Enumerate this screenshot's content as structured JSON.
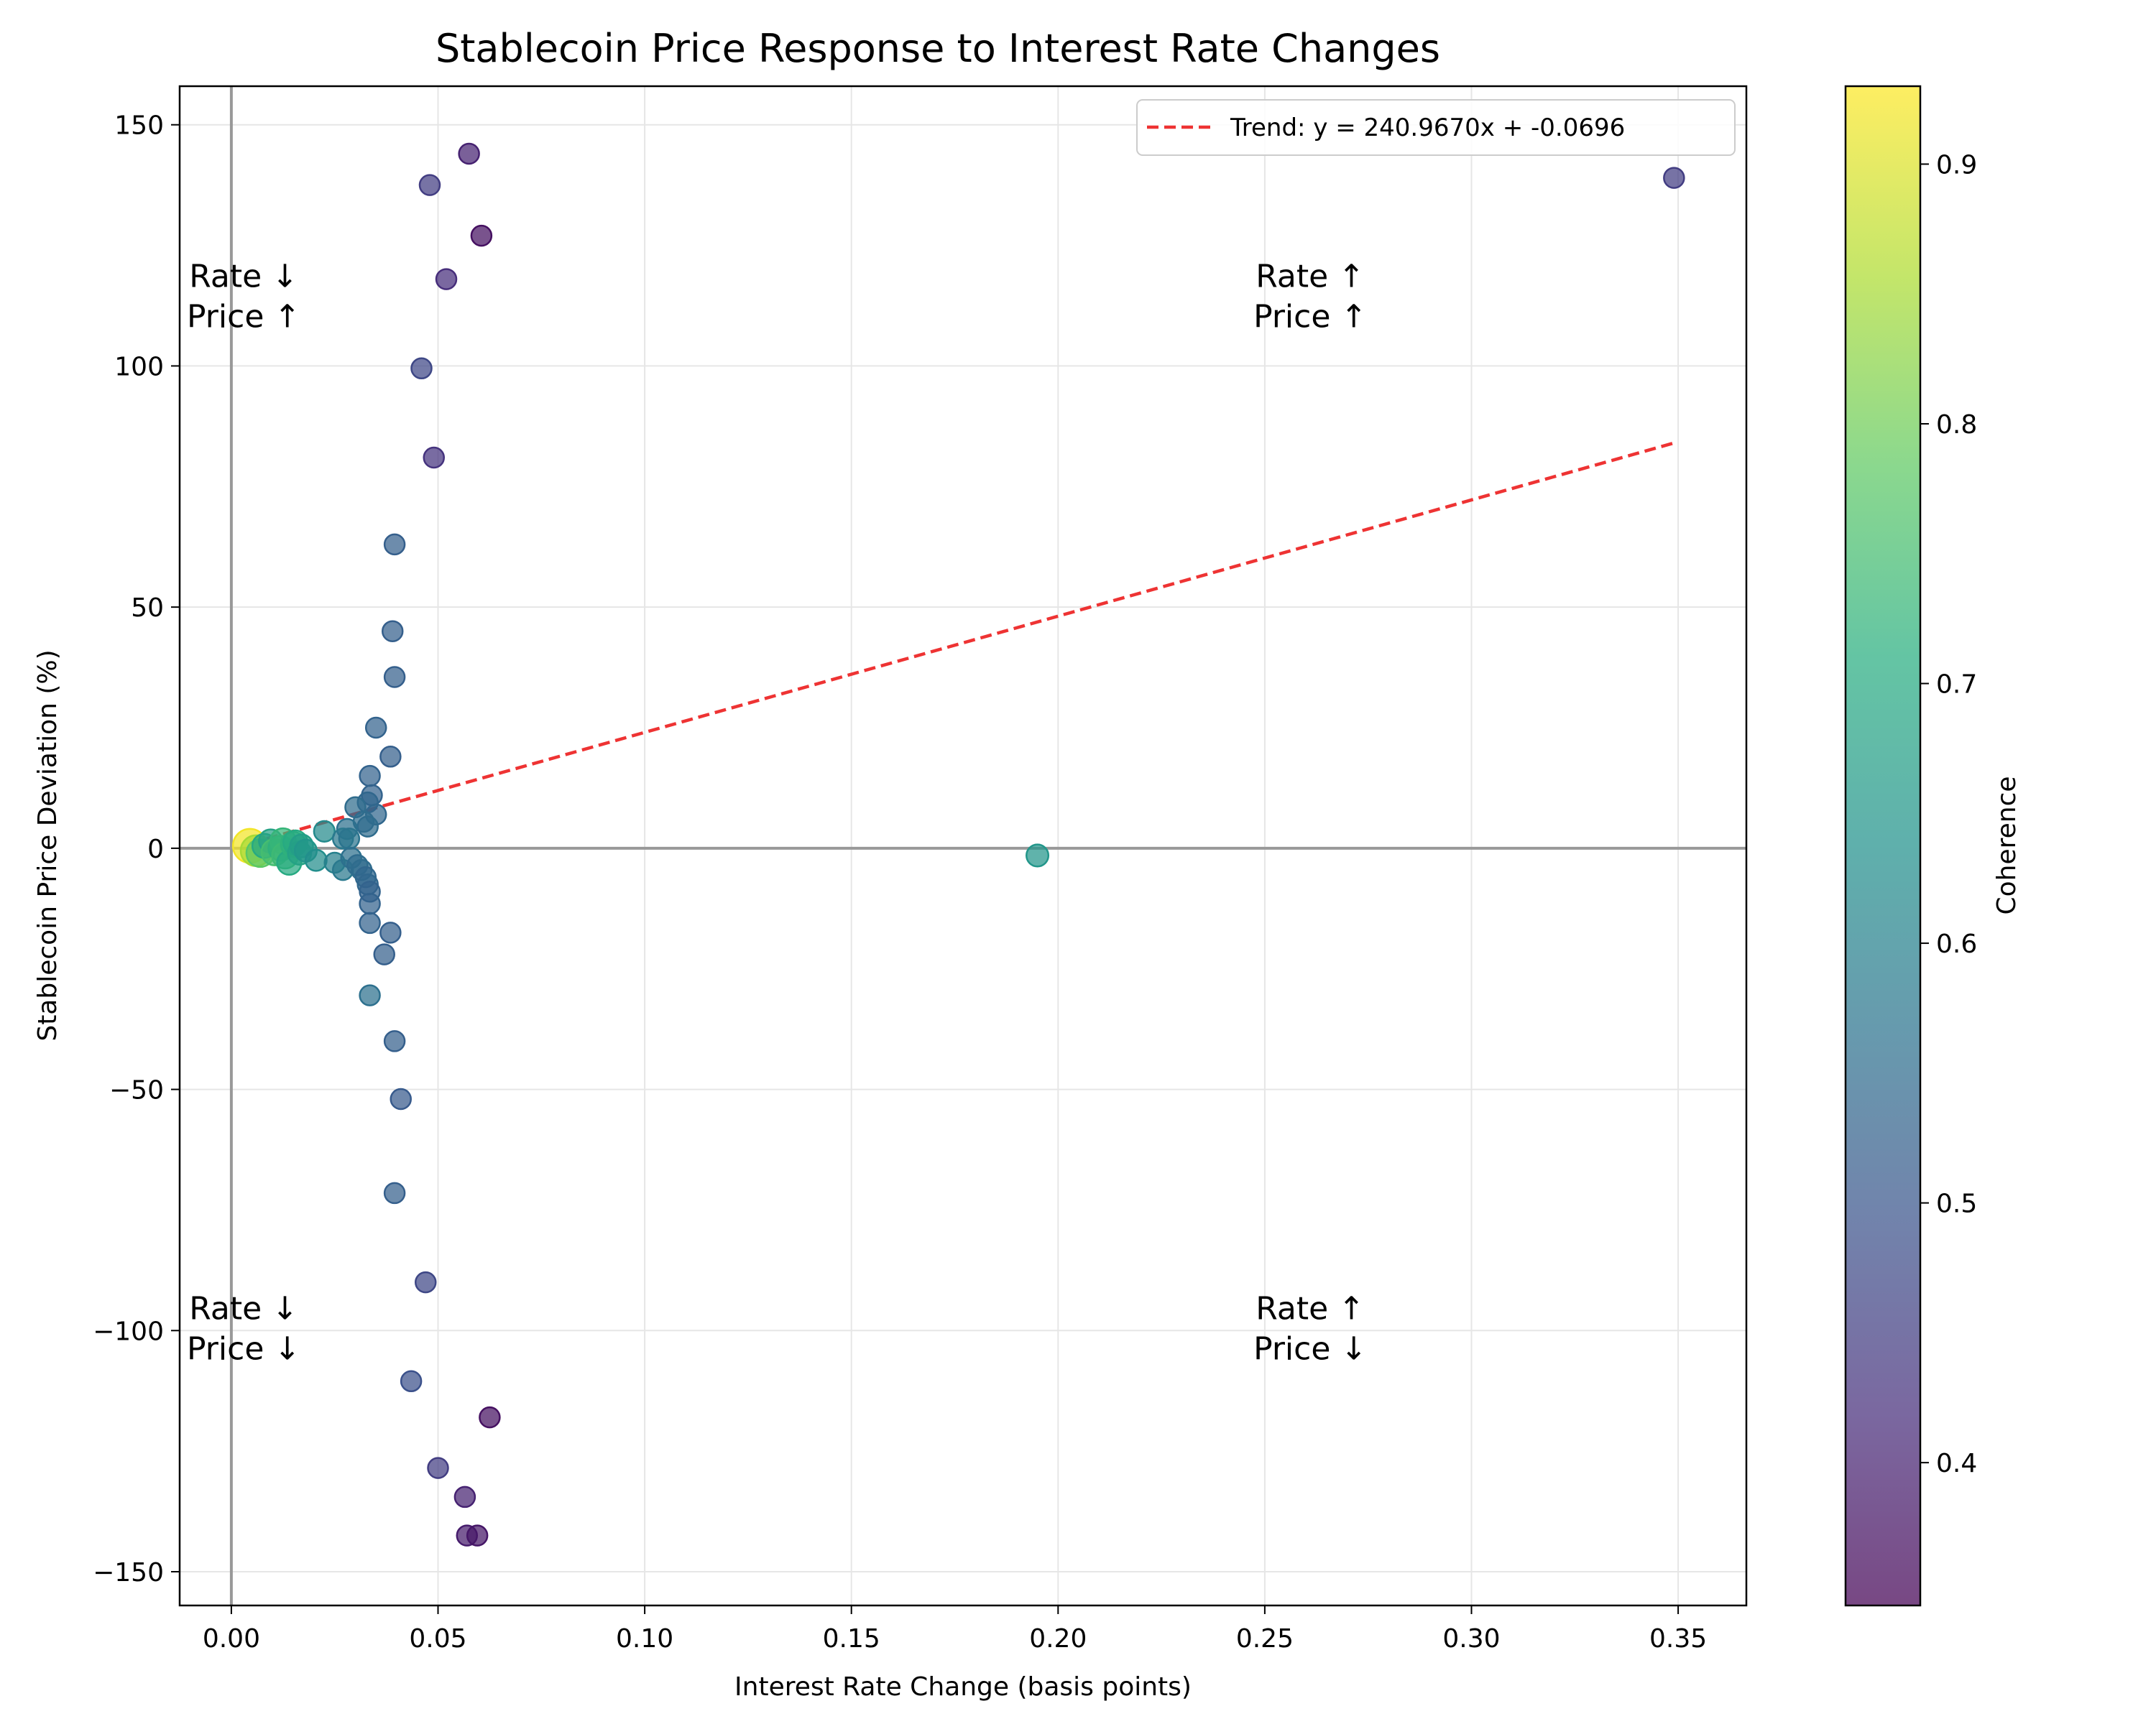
{
  "chart_data": {
    "type": "scatter",
    "title": "Stablecoin Price Response to Interest Rate Changes",
    "xlabel": "Interest Rate Change (basis points)",
    "ylabel": "Stablecoin Price Deviation (%)",
    "xlim": [
      -0.0125,
      0.3665
    ],
    "ylim": [
      -157,
      158
    ],
    "xticks": [
      0.0,
      0.05,
      0.1,
      0.15,
      0.2,
      0.25,
      0.3,
      0.35
    ],
    "xtick_labels": [
      "0.00",
      "0.05",
      "0.10",
      "0.15",
      "0.20",
      "0.25",
      "0.30",
      "0.35"
    ],
    "yticks": [
      -150,
      -100,
      -50,
      0,
      50,
      100,
      150
    ],
    "ytick_labels": [
      "−150",
      "−100",
      "−50",
      "0",
      "50",
      "100",
      "150"
    ],
    "grid": true,
    "reference_lines": {
      "x": 0,
      "y": 0
    },
    "colorbar": {
      "label": "Coherence",
      "colormap": "viridis",
      "range": [
        0.345,
        0.93
      ],
      "ticks": [
        0.4,
        0.5,
        0.6,
        0.7,
        0.8,
        0.9
      ],
      "tick_labels": [
        "0.4",
        "0.5",
        "0.6",
        "0.7",
        "0.8",
        "0.9"
      ]
    },
    "trend": {
      "label": "Trend: y = 240.9670x + -0.0696",
      "slope": 240.967,
      "intercept": -0.0696,
      "x_range": [
        0.0045,
        0.349
      ],
      "color": "#ee3333"
    },
    "legend_position": "top-right",
    "quadrant_labels": [
      {
        "lines": [
          "Rate ↓",
          "Price ↑"
        ],
        "x": 0.003,
        "y": 114
      },
      {
        "lines": [
          "Rate ↑",
          "Price ↑"
        ],
        "x": 0.261,
        "y": 114
      },
      {
        "lines": [
          "Rate ↓",
          "Price ↓"
        ],
        "x": 0.003,
        "y": -100
      },
      {
        "lines": [
          "Rate ↑",
          "Price ↓"
        ],
        "x": 0.261,
        "y": -100
      }
    ],
    "points": [
      {
        "x": 0.349,
        "y": 139,
        "c": 0.45
      },
      {
        "x": 0.0575,
        "y": 144,
        "c": 0.4
      },
      {
        "x": 0.048,
        "y": 137.5,
        "c": 0.45
      },
      {
        "x": 0.0605,
        "y": 127,
        "c": 0.37
      },
      {
        "x": 0.052,
        "y": 118,
        "c": 0.42
      },
      {
        "x": 0.046,
        "y": 99.5,
        "c": 0.47
      },
      {
        "x": 0.049,
        "y": 81,
        "c": 0.43
      },
      {
        "x": 0.0395,
        "y": 63,
        "c": 0.52
      },
      {
        "x": 0.039,
        "y": 45,
        "c": 0.52
      },
      {
        "x": 0.0395,
        "y": 35.5,
        "c": 0.52
      },
      {
        "x": 0.035,
        "y": 25,
        "c": 0.53
      },
      {
        "x": 0.0385,
        "y": 19,
        "c": 0.52
      },
      {
        "x": 0.0335,
        "y": 15,
        "c": 0.53
      },
      {
        "x": 0.034,
        "y": 11,
        "c": 0.53
      },
      {
        "x": 0.033,
        "y": 9.5,
        "c": 0.54
      },
      {
        "x": 0.03,
        "y": 8.5,
        "c": 0.55
      },
      {
        "x": 0.035,
        "y": 7,
        "c": 0.54
      },
      {
        "x": 0.032,
        "y": 5.5,
        "c": 0.55
      },
      {
        "x": 0.033,
        "y": 4.5,
        "c": 0.55
      },
      {
        "x": 0.028,
        "y": 4,
        "c": 0.56
      },
      {
        "x": 0.0225,
        "y": 3.5,
        "c": 0.62
      },
      {
        "x": 0.027,
        "y": 2,
        "c": 0.58
      },
      {
        "x": 0.0285,
        "y": 2,
        "c": 0.57
      },
      {
        "x": 0.0045,
        "y": 0.5,
        "c": 0.92
      },
      {
        "x": 0.006,
        "y": -0.5,
        "c": 0.85
      },
      {
        "x": 0.007,
        "y": -1,
        "c": 0.78
      },
      {
        "x": 0.008,
        "y": 0.5,
        "c": 0.7
      },
      {
        "x": 0.0095,
        "y": 1.5,
        "c": 0.68
      },
      {
        "x": 0.0105,
        "y": -0.8,
        "c": 0.75
      },
      {
        "x": 0.012,
        "y": 0,
        "c": 0.72
      },
      {
        "x": 0.0125,
        "y": 1.5,
        "c": 0.73
      },
      {
        "x": 0.013,
        "y": -1.5,
        "c": 0.74
      },
      {
        "x": 0.014,
        "y": -3,
        "c": 0.7
      },
      {
        "x": 0.015,
        "y": 0.8,
        "c": 0.72
      },
      {
        "x": 0.0155,
        "y": 1.2,
        "c": 0.7
      },
      {
        "x": 0.0165,
        "y": -1,
        "c": 0.68
      },
      {
        "x": 0.017,
        "y": 0.5,
        "c": 0.67
      },
      {
        "x": 0.018,
        "y": -0.5,
        "c": 0.65
      },
      {
        "x": 0.0205,
        "y": -2.5,
        "c": 0.63
      },
      {
        "x": 0.025,
        "y": -3,
        "c": 0.6
      },
      {
        "x": 0.027,
        "y": -4.5,
        "c": 0.58
      },
      {
        "x": 0.029,
        "y": -2,
        "c": 0.56
      },
      {
        "x": 0.0305,
        "y": -3.5,
        "c": 0.55
      },
      {
        "x": 0.0315,
        "y": -4.5,
        "c": 0.55
      },
      {
        "x": 0.0325,
        "y": -6,
        "c": 0.54
      },
      {
        "x": 0.033,
        "y": -7.5,
        "c": 0.54
      },
      {
        "x": 0.0335,
        "y": -9,
        "c": 0.53
      },
      {
        "x": 0.0335,
        "y": -11.5,
        "c": 0.53
      },
      {
        "x": 0.0335,
        "y": -15.5,
        "c": 0.53
      },
      {
        "x": 0.0385,
        "y": -17.5,
        "c": 0.52
      },
      {
        "x": 0.037,
        "y": -22,
        "c": 0.52
      },
      {
        "x": 0.0335,
        "y": -30.5,
        "c": 0.56
      },
      {
        "x": 0.0395,
        "y": -40,
        "c": 0.52
      },
      {
        "x": 0.041,
        "y": -52,
        "c": 0.51
      },
      {
        "x": 0.0395,
        "y": -71.5,
        "c": 0.52
      },
      {
        "x": 0.047,
        "y": -90,
        "c": 0.47
      },
      {
        "x": 0.0435,
        "y": -110.5,
        "c": 0.49
      },
      {
        "x": 0.0625,
        "y": -118,
        "c": 0.37
      },
      {
        "x": 0.05,
        "y": -128.5,
        "c": 0.45
      },
      {
        "x": 0.0565,
        "y": -134.5,
        "c": 0.4
      },
      {
        "x": 0.057,
        "y": -142.5,
        "c": 0.39
      },
      {
        "x": 0.0595,
        "y": -142.5,
        "c": 0.38
      },
      {
        "x": 0.195,
        "y": -1.5,
        "c": 0.65
      }
    ]
  }
}
